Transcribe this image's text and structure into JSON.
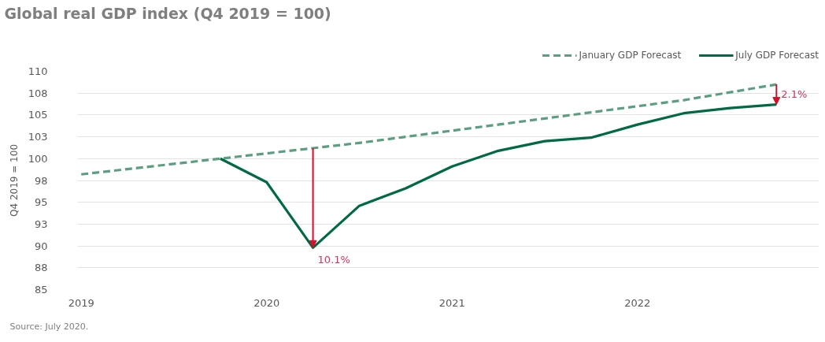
{
  "chart_data": {
    "type": "line",
    "title": "Global real GDP index (Q4 2019 = 100)",
    "ylabel": "Q4 2019 = 100",
    "x": [
      2019,
      2019.25,
      2019.5,
      2019.75,
      2020,
      2020.25,
      2020.5,
      2020.75,
      2021,
      2021.25,
      2021.5,
      2021.75,
      2022,
      2022.25,
      2022.5,
      2022.75
    ],
    "series": [
      {
        "name": "January GDP Forecast",
        "color": "#5b9e80",
        "line_style": "dashed",
        "values": [
          98.2,
          98.8,
          99.4,
          100.0,
          100.6,
          101.2,
          101.8,
          102.5,
          103.2,
          103.9,
          104.6,
          105.3,
          106.0,
          106.7,
          107.6,
          108.5
        ]
      },
      {
        "name": "July GDP Forecast",
        "color": "#006a45",
        "line_style": "solid",
        "values": [
          null,
          null,
          null,
          100.0,
          97.3,
          89.8,
          94.6,
          96.6,
          99.1,
          100.9,
          102.0,
          102.4,
          103.9,
          105.2,
          105.8,
          106.2
        ]
      }
    ],
    "xlim": [
      2018.98,
      2022.98
    ],
    "xticks": [
      2019,
      2020,
      2021,
      2022
    ],
    "ylim": [
      85,
      110
    ],
    "yticks": [
      85,
      {
        "value": 87.5,
        "label": "88"
      },
      90,
      {
        "value": 92.5,
        "label": "93"
      },
      95,
      {
        "value": 97.5,
        "label": "98"
      },
      100,
      {
        "value": 102.5,
        "label": "103"
      },
      105,
      {
        "value": 107.5,
        "label": "108"
      },
      110
    ],
    "grid": "y",
    "legend": "top right",
    "annotations": [
      {
        "text": "10.1%",
        "x": 2020.25,
        "y": 89.8
      },
      {
        "text": "2.1%",
        "x": 2022.75,
        "y": 106.2
      },
      "Source: July 2020."
    ]
  }
}
